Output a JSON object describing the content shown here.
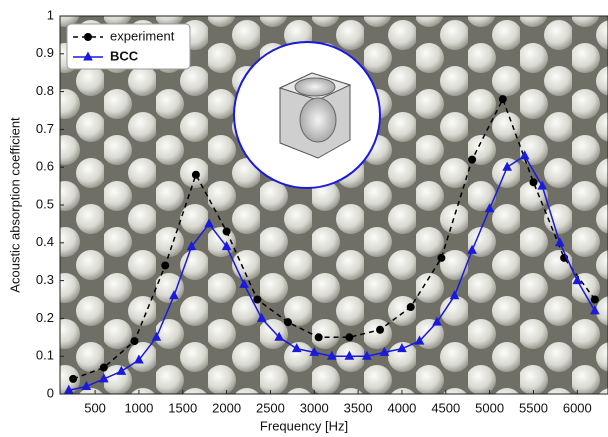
{
  "chart_data": {
    "type": "line",
    "x_label": "Frequency [Hz]",
    "y_label": "Acoustic absorption coefficient",
    "xlim": [
      100,
      6350
    ],
    "ylim": [
      0,
      1
    ],
    "xticks": [
      500,
      1000,
      1500,
      2000,
      2500,
      3000,
      3500,
      4000,
      4500,
      5000,
      5500,
      6000
    ],
    "yticks": [
      0,
      0.1,
      0.2,
      0.3,
      0.4,
      0.5,
      0.6,
      0.7,
      0.8,
      0.9,
      1
    ],
    "legend": "top-left",
    "series": [
      {
        "name": "experiment",
        "color": "#000000",
        "marker": "circle",
        "dashed": true,
        "x": [
          250,
          600,
          950,
          1300,
          1650,
          2000,
          2350,
          2700,
          3050,
          3400,
          3750,
          4100,
          4450,
          4800,
          5150,
          5500,
          5850,
          6200
        ],
        "values": [
          0.04,
          0.07,
          0.14,
          0.34,
          0.58,
          0.43,
          0.25,
          0.19,
          0.15,
          0.15,
          0.17,
          0.23,
          0.36,
          0.62,
          0.78,
          0.56,
          0.36,
          0.25
        ]
      },
      {
        "name": "BCC",
        "color": "#1a1adc",
        "marker": "triangle",
        "dashed": false,
        "x": [
          200,
          400,
          600,
          800,
          1000,
          1200,
          1400,
          1600,
          1800,
          2000,
          2200,
          2400,
          2600,
          2800,
          3000,
          3200,
          3400,
          3600,
          3800,
          4000,
          4200,
          4400,
          4600,
          4800,
          5000,
          5200,
          5400,
          5600,
          5800,
          6000,
          6200
        ],
        "values": [
          0.01,
          0.02,
          0.04,
          0.06,
          0.09,
          0.15,
          0.26,
          0.39,
          0.45,
          0.39,
          0.29,
          0.2,
          0.15,
          0.12,
          0.11,
          0.1,
          0.1,
          0.1,
          0.11,
          0.12,
          0.14,
          0.19,
          0.26,
          0.38,
          0.49,
          0.6,
          0.63,
          0.55,
          0.4,
          0.3,
          0.22
        ]
      }
    ]
  }
}
